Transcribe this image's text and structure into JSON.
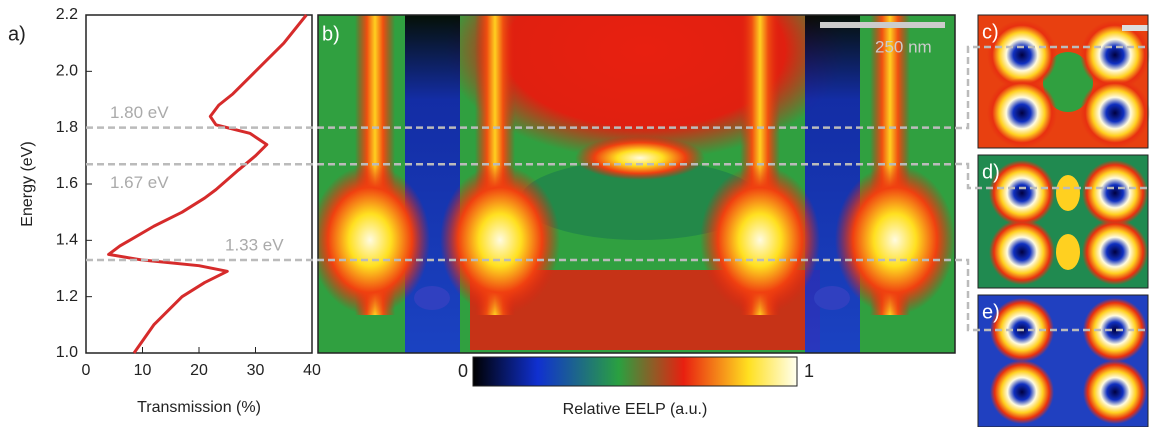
{
  "chart_data": {
    "type": "line",
    "xlabel": "Transmission (%)",
    "ylabel": "Energy (eV)",
    "y": [
      1.0,
      1.1,
      1.2,
      1.25,
      1.29,
      1.31,
      1.33,
      1.35,
      1.38,
      1.45,
      1.5,
      1.55,
      1.58,
      1.65,
      1.7,
      1.74,
      1.78,
      1.81,
      1.84,
      1.88,
      1.92,
      2.0,
      2.1,
      2.2
    ],
    "values": [
      8.5,
      12,
      17,
      21,
      25,
      20,
      10,
      4,
      6,
      12,
      17,
      21,
      23,
      27,
      30,
      32,
      29,
      23,
      22,
      23.5,
      26,
      30,
      35,
      39
    ],
    "color": "#d62b2b",
    "xlim": [
      0,
      40
    ],
    "xticks": [
      0,
      10,
      20,
      30,
      40
    ],
    "ylim": [
      1.0,
      2.2
    ],
    "yticks": [
      {
        "value": 1.0,
        "label": "1.0"
      },
      1.2,
      1.4,
      1.6,
      1.8,
      {
        "value": 2.0,
        "label": "2.0"
      },
      2.2
    ],
    "annotations": [
      {
        "value": 1.8,
        "label": "1.80 eV"
      },
      {
        "value": 1.67,
        "label": "1.67 eV"
      },
      {
        "value": 1.33,
        "label": "1.33 eV"
      }
    ]
  },
  "panel_labels": [
    "a)",
    "b)",
    "c)",
    "d)",
    "e)"
  ],
  "scale_bar": "250 nm",
  "colorbar": {
    "ticks": [
      0,
      1
    ],
    "label": "Relative EELP (a.u.)"
  }
}
